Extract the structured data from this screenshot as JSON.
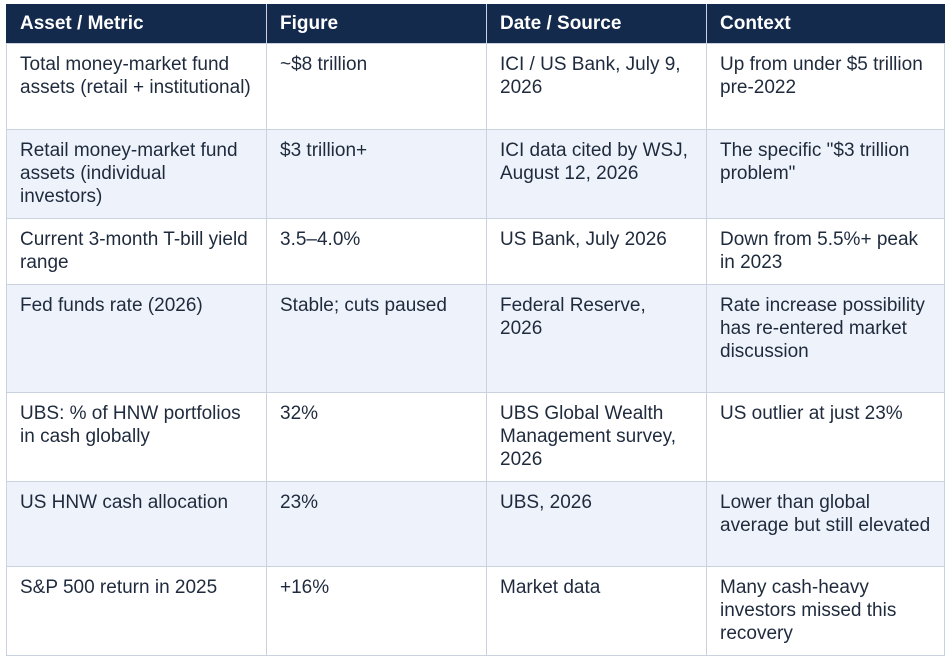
{
  "table": {
    "headers": [
      "Asset / Metric",
      "Figure",
      "Date / Source",
      "Context"
    ],
    "rows": [
      [
        "Total money-market fund assets (retail + institutional)",
        "~$8 trillion",
        "ICI / US Bank, July 9, 2026",
        "Up from under $5 trillion pre-2022"
      ],
      [
        "Retail money-market fund assets (individual investors)",
        "$3 trillion+",
        "ICI data cited by WSJ, August 12, 2026",
        "The specific \"$3 trillion problem\""
      ],
      [
        "Current 3-month T-bill yield range",
        "3.5–4.0%",
        "US Bank, July 2026",
        "Down from 5.5%+ peak in 2023"
      ],
      [
        "Fed funds rate (2026)",
        "Stable; cuts paused",
        "Federal Reserve, 2026",
        "Rate increase possibility has re-entered market discussion"
      ],
      [
        "UBS: % of HNW portfolios in cash globally",
        "32%",
        "UBS Global Wealth Management survey, 2026",
        "US outlier at just 23%"
      ],
      [
        "US HNW cash allocation",
        "23%",
        "UBS, 2026",
        "Lower than global average but still elevated"
      ],
      [
        "S&P 500 return in 2025",
        "+16%",
        "Market data",
        "Many cash-heavy investors missed this recovery"
      ]
    ]
  },
  "colors": {
    "header_bg": "#142a4d",
    "header_text": "#ffffff",
    "row_alt_bg": "#eef3fb",
    "border": "#c9d2de"
  }
}
